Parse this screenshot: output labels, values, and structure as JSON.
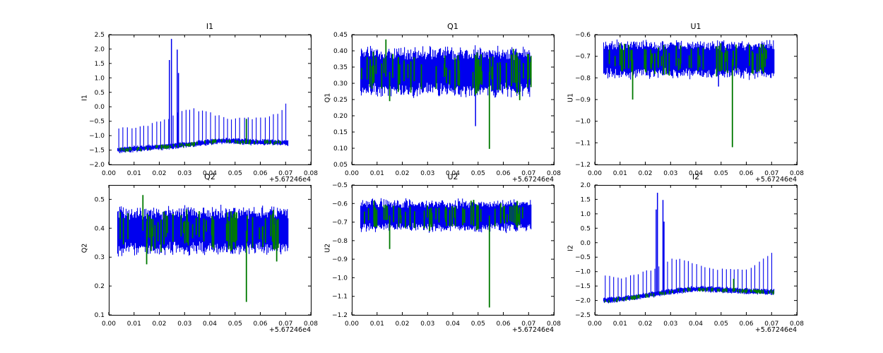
{
  "figure": {
    "background": "#ffffff",
    "frame_color": "#000000",
    "text_color": "#000000",
    "series_colors": {
      "primary_blue": "#0000ee",
      "secondary_green": "#007a00"
    },
    "x_offset_label": "+5.67246e4"
  },
  "chart_data": [
    {
      "id": "i1",
      "type": "line",
      "kind": "baseline",
      "title": "I1",
      "ylabel": "I1",
      "xlim": [
        0,
        0.08
      ],
      "xticks": [
        0,
        0.01,
        0.02,
        0.03,
        0.04,
        0.05,
        0.06,
        0.07,
        0.08
      ],
      "x_decimals": 2,
      "x_offset_label": "+5.67246e4",
      "ylim": [
        -2.0,
        2.5
      ],
      "yticks": [
        2.5,
        2.0,
        1.5,
        1.0,
        0.5,
        0.0,
        -0.5,
        -1.0,
        -1.5,
        -2.0
      ],
      "y_decimals": 1,
      "x_data_range": [
        0.0035,
        0.071
      ],
      "baseline_trend": [
        [
          0.0035,
          -1.5
        ],
        [
          0.008,
          -1.47
        ],
        [
          0.012,
          -1.45
        ],
        [
          0.016,
          -1.42
        ],
        [
          0.02,
          -1.4
        ],
        [
          0.024,
          -1.36
        ],
        [
          0.028,
          -1.33
        ],
        [
          0.032,
          -1.3
        ],
        [
          0.036,
          -1.26
        ],
        [
          0.04,
          -1.22
        ],
        [
          0.044,
          -1.18
        ],
        [
          0.048,
          -1.18
        ],
        [
          0.052,
          -1.2
        ],
        [
          0.056,
          -1.22
        ],
        [
          0.06,
          -1.23
        ],
        [
          0.064,
          -1.22
        ],
        [
          0.068,
          -1.24
        ],
        [
          0.071,
          -1.25
        ]
      ],
      "baseline_halfwidth": 0.1,
      "periodic_spikes": {
        "period": 0.00165,
        "envelope": [
          [
            0.004,
            -0.72
          ],
          [
            0.008,
            -0.74
          ],
          [
            0.012,
            -0.7
          ],
          [
            0.016,
            -0.62
          ],
          [
            0.02,
            -0.52
          ],
          [
            0.023,
            -0.45
          ],
          [
            0.03,
            -0.1
          ],
          [
            0.033,
            -0.08
          ],
          [
            0.036,
            -0.13
          ],
          [
            0.04,
            -0.22
          ],
          [
            0.044,
            -0.32
          ],
          [
            0.048,
            -0.4
          ],
          [
            0.052,
            -0.42
          ],
          [
            0.056,
            -0.4
          ],
          [
            0.06,
            -0.38
          ],
          [
            0.064,
            -0.33
          ],
          [
            0.066,
            -0.25
          ],
          [
            0.068,
            -0.15
          ],
          [
            0.0705,
            0.15
          ]
        ]
      },
      "big_spikes": [
        [
          0.024,
          1.62
        ],
        [
          0.0248,
          2.35
        ],
        [
          0.0271,
          1.98
        ],
        [
          0.0276,
          1.17
        ]
      ],
      "green_spikes": [
        [
          0.0545,
          -0.42
        ]
      ]
    },
    {
      "id": "q1",
      "type": "line",
      "kind": "band",
      "title": "Q1",
      "ylabel": "Q1",
      "xlim": [
        0,
        0.08
      ],
      "xticks": [
        0,
        0.01,
        0.02,
        0.03,
        0.04,
        0.05,
        0.06,
        0.07,
        0.08
      ],
      "x_decimals": 2,
      "x_offset_label": "+5.67246e4",
      "ylim": [
        0.05,
        0.45
      ],
      "yticks": [
        0.45,
        0.4,
        0.35,
        0.3,
        0.25,
        0.2,
        0.15,
        0.1,
        0.05
      ],
      "y_decimals": 2,
      "band": {
        "x_start": 0.0035,
        "x_end": 0.071,
        "low": 0.265,
        "high": 0.405
      },
      "green_segments": 52,
      "green_clusters": [
        0.049,
        0.0655
      ],
      "outlier_spikes": [
        {
          "x": 0.0135,
          "y": 0.435,
          "color": "green"
        },
        {
          "x": 0.015,
          "y": 0.245,
          "color": "green"
        },
        {
          "x": 0.048,
          "y": 0.285,
          "color": "green"
        },
        {
          "x": 0.049,
          "y": 0.168,
          "color": "blue"
        },
        {
          "x": 0.0545,
          "y": 0.098,
          "color": "green"
        },
        {
          "x": 0.0665,
          "y": 0.248,
          "color": "green"
        }
      ]
    },
    {
      "id": "u1",
      "type": "line",
      "kind": "band",
      "title": "U1",
      "ylabel": "U1",
      "xlim": [
        0,
        0.08
      ],
      "xticks": [
        0,
        0.01,
        0.02,
        0.03,
        0.04,
        0.05,
        0.06,
        0.07,
        0.08
      ],
      "x_decimals": 2,
      "x_offset_label": "+5.67246e4",
      "ylim": [
        -1.2,
        -0.6
      ],
      "yticks": [
        -0.6,
        -0.7,
        -0.8,
        -0.9,
        -1.0,
        -1.1,
        -1.2
      ],
      "y_decimals": 1,
      "band": {
        "x_start": 0.0035,
        "x_end": 0.071,
        "low": -0.795,
        "high": -0.635
      },
      "green_segments": 52,
      "green_clusters": [
        0.049,
        0.0655
      ],
      "outlier_spikes": [
        {
          "x": 0.015,
          "y": -0.9,
          "color": "green"
        },
        {
          "x": 0.049,
          "y": -0.84,
          "color": "blue"
        },
        {
          "x": 0.0545,
          "y": -1.12,
          "color": "green"
        }
      ]
    },
    {
      "id": "q2",
      "type": "line",
      "kind": "band",
      "title": "Q2",
      "ylabel": "Q2",
      "xlim": [
        0,
        0.08
      ],
      "xticks": [
        0,
        0.01,
        0.02,
        0.03,
        0.04,
        0.05,
        0.06,
        0.07,
        0.08
      ],
      "x_decimals": 2,
      "x_offset_label": "+5.67246e4",
      "ylim": [
        0.1,
        0.55
      ],
      "yticks": [
        0.5,
        0.4,
        0.3,
        0.2,
        0.1
      ],
      "y_decimals": 1,
      "band": {
        "x_start": 0.0035,
        "x_end": 0.071,
        "low": 0.315,
        "high": 0.468
      },
      "green_segments": 52,
      "green_clusters": [
        0.049,
        0.0655
      ],
      "outlier_spikes": [
        {
          "x": 0.0135,
          "y": 0.515,
          "color": "green"
        },
        {
          "x": 0.015,
          "y": 0.275,
          "color": "green"
        },
        {
          "x": 0.0545,
          "y": 0.145,
          "color": "green"
        },
        {
          "x": 0.0665,
          "y": 0.285,
          "color": "green"
        }
      ]
    },
    {
      "id": "u2",
      "type": "line",
      "kind": "band",
      "title": "U2",
      "ylabel": "U2",
      "xlim": [
        0,
        0.08
      ],
      "xticks": [
        0,
        0.01,
        0.02,
        0.03,
        0.04,
        0.05,
        0.06,
        0.07,
        0.08
      ],
      "x_decimals": 2,
      "x_offset_label": "+5.67246e4",
      "ylim": [
        -1.2,
        -0.5
      ],
      "yticks": [
        -0.5,
        -0.6,
        -0.7,
        -0.8,
        -0.9,
        -1.0,
        -1.1,
        -1.2
      ],
      "y_decimals": 1,
      "band": {
        "x_start": 0.0035,
        "x_end": 0.071,
        "low": -0.745,
        "high": -0.585
      },
      "green_segments": 52,
      "green_clusters": [
        0.049,
        0.0655
      ],
      "outlier_spikes": [
        {
          "x": 0.015,
          "y": -0.845,
          "color": "green"
        },
        {
          "x": 0.0545,
          "y": -1.16,
          "color": "green"
        }
      ]
    },
    {
      "id": "i2",
      "type": "line",
      "kind": "baseline",
      "title": "I2",
      "ylabel": "I2",
      "xlim": [
        0,
        0.08
      ],
      "xticks": [
        0,
        0.01,
        0.02,
        0.03,
        0.04,
        0.05,
        0.06,
        0.07,
        0.08
      ],
      "x_decimals": 2,
      "x_offset_label": "+5.67246e4",
      "ylim": [
        -2.5,
        2.0
      ],
      "yticks": [
        2.0,
        1.5,
        1.0,
        0.5,
        0.0,
        -0.5,
        -1.0,
        -1.5,
        -2.0,
        -2.5
      ],
      "y_decimals": 1,
      "x_data_range": [
        0.0035,
        0.071
      ],
      "baseline_trend": [
        [
          0.0035,
          -2.0
        ],
        [
          0.008,
          -1.97
        ],
        [
          0.012,
          -1.93
        ],
        [
          0.016,
          -1.88
        ],
        [
          0.02,
          -1.83
        ],
        [
          0.024,
          -1.78
        ],
        [
          0.028,
          -1.72
        ],
        [
          0.032,
          -1.67
        ],
        [
          0.036,
          -1.63
        ],
        [
          0.04,
          -1.6
        ],
        [
          0.044,
          -1.6
        ],
        [
          0.048,
          -1.62
        ],
        [
          0.052,
          -1.64
        ],
        [
          0.056,
          -1.66
        ],
        [
          0.06,
          -1.68
        ],
        [
          0.064,
          -1.68
        ],
        [
          0.068,
          -1.7
        ],
        [
          0.071,
          -1.7
        ]
      ],
      "baseline_halfwidth": 0.1,
      "periodic_spikes": {
        "period": 0.00165,
        "envelope": [
          [
            0.004,
            -1.15
          ],
          [
            0.008,
            -1.18
          ],
          [
            0.012,
            -1.22
          ],
          [
            0.016,
            -1.1
          ],
          [
            0.02,
            -1.0
          ],
          [
            0.023,
            -0.95
          ],
          [
            0.03,
            -0.6
          ],
          [
            0.033,
            -0.55
          ],
          [
            0.036,
            -0.62
          ],
          [
            0.04,
            -0.72
          ],
          [
            0.044,
            -0.85
          ],
          [
            0.048,
            -0.92
          ],
          [
            0.052,
            -0.95
          ],
          [
            0.056,
            -0.92
          ],
          [
            0.06,
            -0.9
          ],
          [
            0.064,
            -0.8
          ],
          [
            0.066,
            -0.62
          ],
          [
            0.068,
            -0.5
          ],
          [
            0.0705,
            -0.28
          ]
        ]
      },
      "big_spikes": [
        [
          0.0243,
          1.15
        ],
        [
          0.0248,
          1.73
        ],
        [
          0.027,
          1.48
        ],
        [
          0.0274,
          0.73
        ]
      ],
      "green_spikes": [
        [
          0.055,
          -1.25
        ]
      ]
    }
  ]
}
